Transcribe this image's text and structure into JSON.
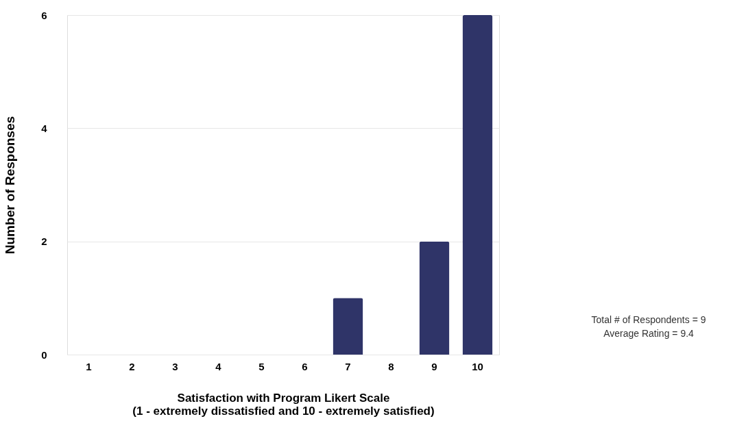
{
  "chart_data": {
    "type": "bar",
    "categories": [
      "1",
      "2",
      "3",
      "4",
      "5",
      "6",
      "7",
      "8",
      "9",
      "10"
    ],
    "values": [
      0,
      0,
      0,
      0,
      0,
      0,
      1,
      0,
      2,
      6
    ],
    "color": "#2f3468",
    "xlabel": "Satisfaction with Program Likert Scale\n(1 - extremely dissatisfied and 10 - extremely satisfied)",
    "ylabel": "Number of Responses",
    "ylim": [
      0,
      6
    ],
    "yticks": [
      0,
      2,
      4,
      6
    ],
    "grid": "y",
    "annotations": [
      "Total # of Respondents = 9",
      "Average Rating = 9.4"
    ]
  }
}
